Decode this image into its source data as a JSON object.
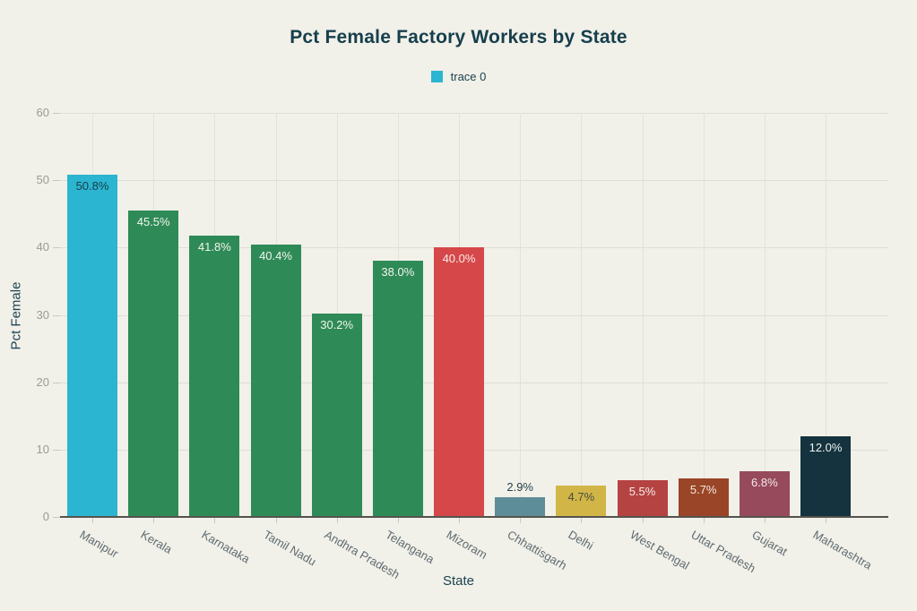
{
  "title": "Pct Female Factory Workers by State",
  "legend": {
    "items": [
      {
        "label": "trace 0",
        "color": "#2bb5d0"
      }
    ]
  },
  "colors": {
    "background": "#f1f0e9",
    "gridline": "#dfded6",
    "axis_line": "#55534e",
    "y_tick_label": "#9a9b94",
    "x_tick_label": "#5f6b70",
    "title_text": "#163f4c"
  },
  "chart_data": {
    "type": "bar",
    "title": "Pct Female Factory Workers by State",
    "xlabel": "State",
    "ylabel": "Pct Female",
    "legend_entries": [
      "trace 0"
    ],
    "legend_position": "top-center",
    "grid": true,
    "categories": [
      "Manipur",
      "Kerala",
      "Karnataka",
      "Tamil Nadu",
      "Andhra Pradesh",
      "Telangana",
      "Mizoram",
      "Chhattisgarh",
      "Delhi",
      "West Bengal",
      "Uttar Pradesh",
      "Gujarat",
      "Maharashtra"
    ],
    "values": [
      50.8,
      45.5,
      41.8,
      40.4,
      30.2,
      38.0,
      40.0,
      2.9,
      4.7,
      5.5,
      5.7,
      6.8,
      12.0
    ],
    "value_labels": [
      "50.8%",
      "45.5%",
      "41.8%",
      "40.4%",
      "30.2%",
      "38.0%",
      "40.0%",
      "2.9%",
      "4.7%",
      "5.5%",
      "5.7%",
      "6.8%",
      "12.0%"
    ],
    "bar_colors": [
      "#2bb5d0",
      "#2e8b57",
      "#2e8b57",
      "#2e8b57",
      "#2e8b57",
      "#2e8b57",
      "#d64749",
      "#5d8d99",
      "#d1b647",
      "#b54342",
      "#9a4527",
      "#964a5c",
      "#15333e"
    ],
    "label_positions": [
      "inside",
      "inside",
      "inside",
      "inside",
      "inside",
      "inside",
      "inside",
      "outside",
      "inside",
      "inside",
      "inside",
      "inside",
      "inside"
    ],
    "label_colors": [
      "#17404d",
      "#f4f3ec",
      "#f4f3ec",
      "#f4f3ec",
      "#f4f3ec",
      "#f4f3ec",
      "#f7eeea",
      "#27414a",
      "#474c41",
      "#f7eeea",
      "#f3e9e2",
      "#f5e9e9",
      "#eef2f0"
    ],
    "yticks": [
      "0",
      "10",
      "20",
      "30",
      "40",
      "50",
      "60"
    ],
    "ytick_values": [
      0,
      10,
      20,
      30,
      40,
      50,
      60
    ],
    "ylim": [
      0,
      60
    ]
  }
}
